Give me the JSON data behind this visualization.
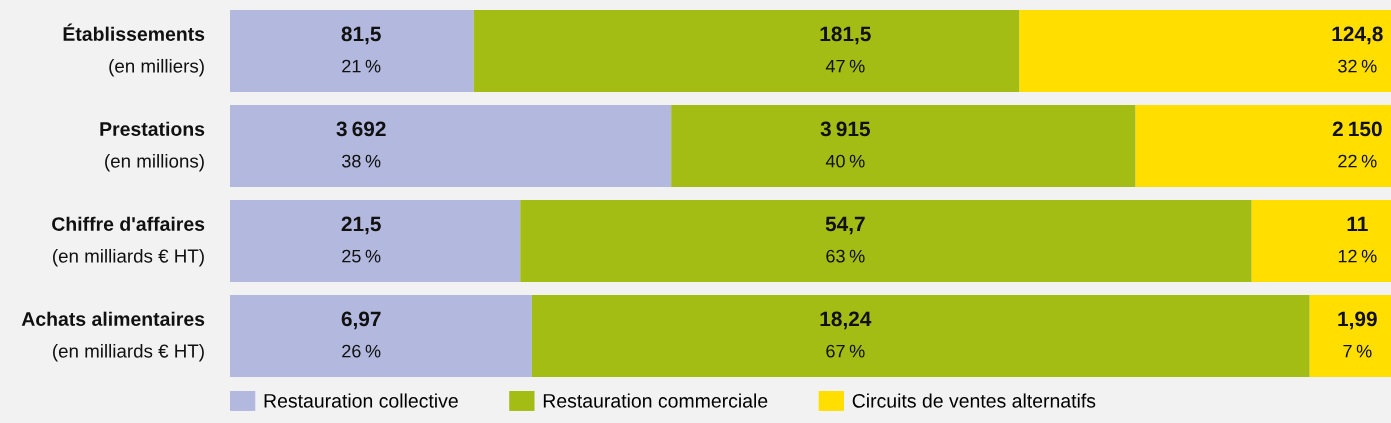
{
  "chart_data": {
    "type": "bar",
    "orientation": "horizontal",
    "stacked": true,
    "categories": [
      "Établissements\n(en milliers)",
      "Prestations\n(en millions)",
      "Chiffre d'affaires\n(en milliards € HT)",
      "Achats alimentaires\n(en milliards € HT)"
    ],
    "xlim": [
      0,
      100
    ],
    "series": [
      {
        "name": "Restauration collective",
        "color": "#b3b9de",
        "values": [
          21,
          38,
          25,
          26
        ],
        "value_labels": [
          "81,5\n21 %",
          "3 692\n38 %",
          "21,5\n25 %",
          "6,97\n26 %"
        ]
      },
      {
        "name": "Restauration commerciale",
        "color": "#a3bd14",
        "values": [
          47,
          40,
          63,
          67
        ],
        "value_labels": [
          "181,5\n47 %",
          "3 915\n40 %",
          "54,7\n63 %",
          "18,24\n67 %"
        ]
      },
      {
        "name": "Circuits de ventes alternatifs",
        "color": "#ffde00",
        "values": [
          32,
          22,
          12,
          7
        ],
        "value_labels": [
          "124,8\n32 %",
          "2 150\n22 %",
          "11\n12 %",
          "1,99\n7 %"
        ]
      }
    ],
    "legend": "bottom"
  }
}
